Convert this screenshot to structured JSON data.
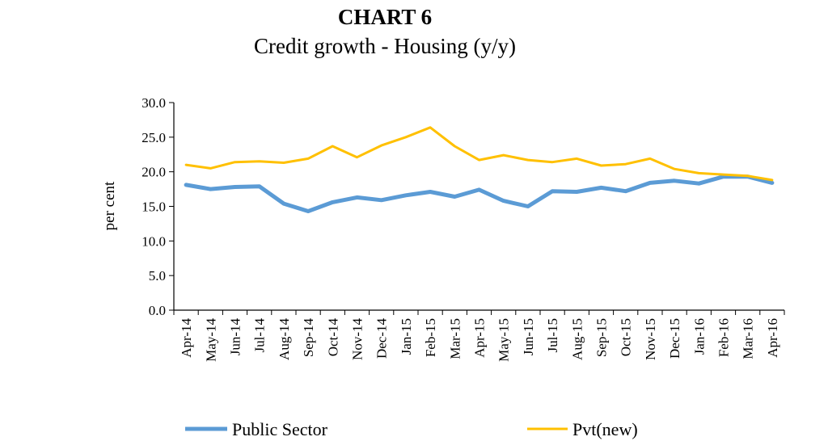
{
  "chart_data": {
    "type": "line",
    "title": "CHART 6",
    "subtitle": "Credit growth - Housing (y/y)",
    "xlabel": "",
    "ylabel": "per cent",
    "ylim": [
      0,
      30
    ],
    "yticks": [
      "0.0",
      "5.0",
      "10.0",
      "15.0",
      "20.0",
      "25.0",
      "30.0"
    ],
    "grid": false,
    "legend_position": "bottom",
    "categories": [
      "Apr-14",
      "May-14",
      "Jun-14",
      "Jul-14",
      "Aug-14",
      "Sep-14",
      "Oct-14",
      "Nov-14",
      "Dec-14",
      "Jan-15",
      "Feb-15",
      "Mar-15",
      "Apr-15",
      "May-15",
      "Jun-15",
      "Jul-15",
      "Aug-15",
      "Sep-15",
      "Oct-15",
      "Nov-15",
      "Dec-15",
      "Jan-16",
      "Feb-16",
      "Mar-16",
      "Apr-16"
    ],
    "series": [
      {
        "name": "Public Sector",
        "color": "#5B9BD5",
        "values": [
          18.1,
          17.5,
          17.8,
          17.9,
          15.4,
          14.3,
          15.6,
          16.3,
          15.9,
          16.6,
          17.1,
          16.4,
          17.4,
          15.8,
          15.0,
          17.2,
          17.1,
          17.7,
          17.2,
          18.4,
          18.7,
          18.3,
          19.3,
          19.3,
          18.4
        ]
      },
      {
        "name": "Pvt(new)",
        "color": "#FFC000",
        "values": [
          21.0,
          20.5,
          21.4,
          21.5,
          21.3,
          21.9,
          23.7,
          22.1,
          23.8,
          25.0,
          26.4,
          23.7,
          21.7,
          22.4,
          21.7,
          21.4,
          21.9,
          20.9,
          21.1,
          21.9,
          20.4,
          19.8,
          19.6,
          19.4,
          18.8
        ]
      }
    ]
  }
}
